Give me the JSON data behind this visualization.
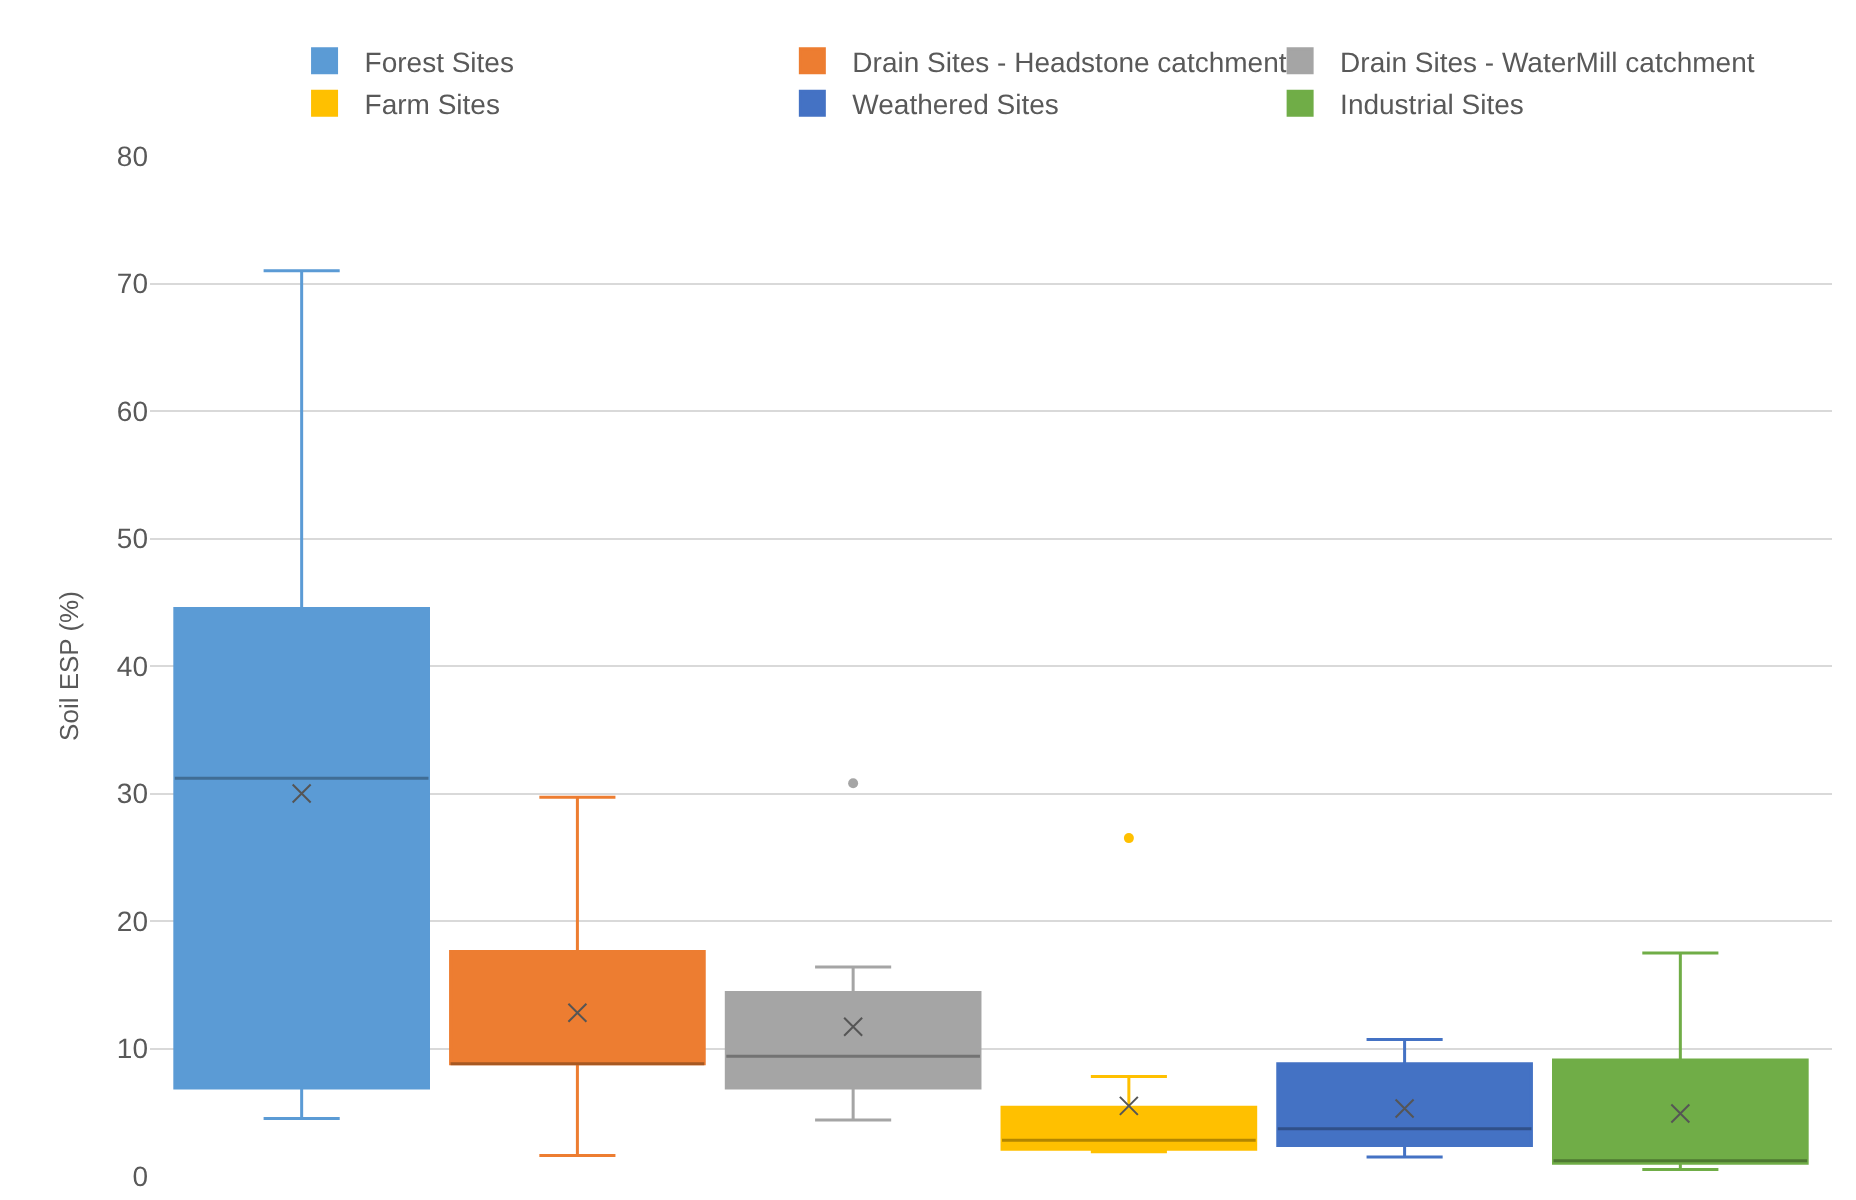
{
  "chart_data": {
    "type": "box",
    "ylabel": "Soil ESP (%)",
    "categories": [
      null
    ],
    "ylim": [
      0,
      80
    ],
    "yticks": [
      0,
      10,
      20,
      30,
      40,
      50,
      60,
      70,
      80
    ],
    "grid": "y",
    "legend": "top",
    "series": [
      {
        "name": "Forest Sites",
        "color": "#5b9bd5",
        "boxes": [
          {
            "low": 4.5,
            "q1": 6.9,
            "median": 31.2,
            "q3": 44.5,
            "high": 71,
            "mean": 30
          }
        ]
      },
      {
        "name": "Drain Sites - Headstone catchment",
        "color": "#ed7d31",
        "boxes": [
          {
            "low": 1.6,
            "q1": 8.8,
            "median": 8.8,
            "q3": 17.6,
            "high": 29.7,
            "mean": 12.8
          }
        ]
      },
      {
        "name": "Drain Sites - WaterMill catchment",
        "color": "#a5a5a5",
        "boxes": [
          {
            "low": 4.4,
            "q1": 6.9,
            "median": 9.4,
            "q3": 14.4,
            "high": 16.4,
            "mean": 11.7,
            "outliers": [
              30.8
            ]
          }
        ]
      },
      {
        "name": "Farm Sites",
        "color": "#ffc000",
        "boxes": [
          {
            "low": 1.9,
            "q1": 2.1,
            "median": 2.8,
            "q3": 5.4,
            "high": 7.8,
            "mean": 5.5,
            "outliers": [
              26.5
            ]
          }
        ]
      },
      {
        "name": "Weathered Sites",
        "color": "#4472c4",
        "boxes": [
          {
            "low": 1.5,
            "q1": 2.4,
            "median": 3.7,
            "q3": 8.8,
            "high": 10.7,
            "mean": 5.3
          }
        ]
      },
      {
        "name": "Industrial Sites",
        "color": "#70ad47",
        "boxes": [
          {
            "low": 0.5,
            "q1": 1.0,
            "median": 1.2,
            "q3": 9.1,
            "high": 17.5,
            "mean": 4.9
          }
        ]
      }
    ]
  }
}
